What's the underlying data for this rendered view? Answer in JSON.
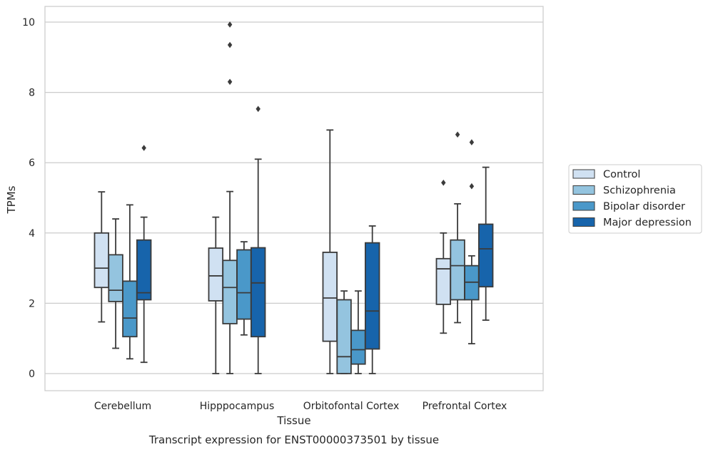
{
  "chart_data": {
    "type": "box",
    "caption": "Transcript expression for ENST00000373501 by tissue",
    "xlabel": "Tissue",
    "ylabel": "TPMs",
    "ylim": [
      -0.45,
      10.45
    ],
    "yticks": [
      0,
      2,
      4,
      6,
      8,
      10
    ],
    "grid": "horizontal",
    "legend_position": "right",
    "categories": [
      "Cerebellum",
      "Hipppocampus",
      "Orbitofontal Cortex",
      "Prefrontal Cortex"
    ],
    "series": [
      {
        "name": "Control",
        "color": "#d0e1f2",
        "boxes": [
          {
            "whislo": 1.47,
            "q1": 2.45,
            "med": 3.0,
            "q3": 4.0,
            "whishi": 5.17,
            "fliers": []
          },
          {
            "whislo": 0.0,
            "q1": 2.07,
            "med": 2.78,
            "q3": 3.57,
            "whishi": 4.45,
            "fliers": []
          },
          {
            "whislo": 0.0,
            "q1": 0.92,
            "med": 2.15,
            "q3": 3.45,
            "whishi": 6.93,
            "fliers": []
          },
          {
            "whislo": 1.15,
            "q1": 1.97,
            "med": 2.98,
            "q3": 3.27,
            "whishi": 4.0,
            "fliers": [
              5.43
            ]
          }
        ]
      },
      {
        "name": "Schizophrenia",
        "color": "#94c4df",
        "boxes": [
          {
            "whislo": 0.72,
            "q1": 2.05,
            "med": 2.37,
            "q3": 3.38,
            "whishi": 4.4,
            "fliers": []
          },
          {
            "whislo": 0.0,
            "q1": 1.42,
            "med": 2.45,
            "q3": 3.22,
            "whishi": 5.18,
            "fliers": [
              9.93,
              9.35,
              8.3
            ]
          },
          {
            "whislo": 0.0,
            "q1": 0.0,
            "med": 0.48,
            "q3": 2.1,
            "whishi": 2.35,
            "fliers": []
          },
          {
            "whislo": 1.45,
            "q1": 2.1,
            "med": 3.07,
            "q3": 3.8,
            "whishi": 4.83,
            "fliers": [
              6.8
            ]
          }
        ]
      },
      {
        "name": "Bipolar disorder",
        "color": "#4a98c9",
        "boxes": [
          {
            "whislo": 0.42,
            "q1": 1.05,
            "med": 1.58,
            "q3": 2.63,
            "whishi": 4.8,
            "fliers": []
          },
          {
            "whislo": 1.1,
            "q1": 1.55,
            "med": 2.3,
            "q3": 3.52,
            "whishi": 3.75,
            "fliers": []
          },
          {
            "whislo": 0.0,
            "q1": 0.27,
            "med": 0.68,
            "q3": 1.23,
            "whishi": 2.35,
            "fliers": []
          },
          {
            "whislo": 0.85,
            "q1": 2.1,
            "med": 2.6,
            "q3": 3.07,
            "whishi": 3.35,
            "fliers": [
              6.58,
              5.33
            ]
          }
        ]
      },
      {
        "name": "Major depression",
        "color": "#1764ab",
        "boxes": [
          {
            "whislo": 0.32,
            "q1": 2.1,
            "med": 2.3,
            "q3": 3.8,
            "whishi": 4.45,
            "fliers": [
              6.42
            ]
          },
          {
            "whislo": 0.0,
            "q1": 1.05,
            "med": 2.58,
            "q3": 3.58,
            "whishi": 6.1,
            "fliers": [
              7.53
            ]
          },
          {
            "whislo": 0.0,
            "q1": 0.7,
            "med": 1.78,
            "q3": 3.72,
            "whishi": 4.2,
            "fliers": []
          },
          {
            "whislo": 1.52,
            "q1": 2.47,
            "med": 3.55,
            "q3": 4.25,
            "whishi": 5.87,
            "fliers": []
          }
        ]
      }
    ]
  }
}
